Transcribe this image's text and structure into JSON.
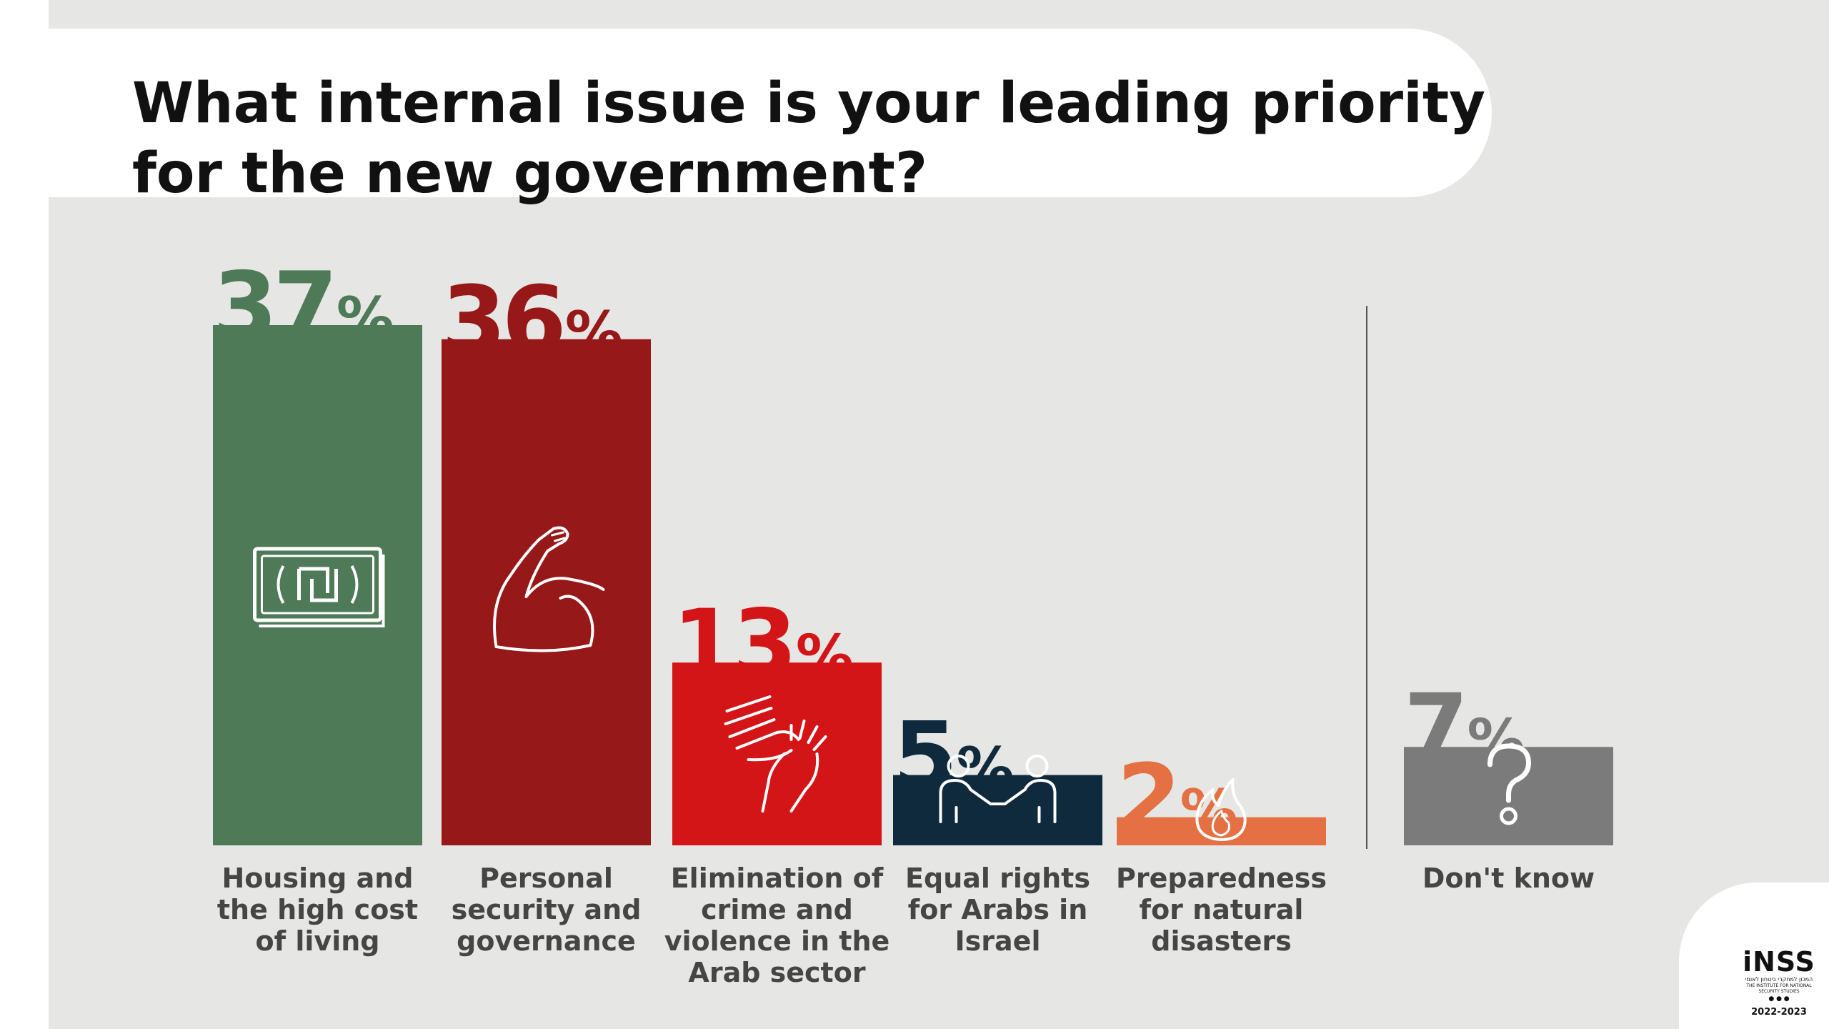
{
  "title": "What internal issue is your leading priority for the new government?",
  "chart_data": {
    "type": "bar",
    "title": "What internal issue is your leading priority for the new government?",
    "categories": [
      "Housing and the high cost of living",
      "Personal security and governance",
      "Elimination of crime and violence in the Arab sector",
      "Equal rights for Arabs in Israel",
      "Preparedness for natural disasters",
      "Don't know"
    ],
    "label_lines": [
      [
        "Housing and",
        "the high cost",
        "of living"
      ],
      [
        "Personal",
        "security and",
        "governance"
      ],
      [
        "Elimination of",
        "crime and",
        "violence in the",
        "Arab sector"
      ],
      [
        "Equal rights",
        "for Arabs in",
        "Israel"
      ],
      [
        "Preparedness",
        "for natural",
        "disasters"
      ],
      [
        "Don't know"
      ]
    ],
    "values": [
      37,
      36,
      13,
      5,
      2,
      7
    ],
    "value_labels": [
      "37",
      "36",
      "13",
      "5",
      "2",
      "7"
    ],
    "unit": "%",
    "colors": [
      "#4f7a57",
      "#971818",
      "#d41518",
      "#0f2a3c",
      "#e47043",
      "#7b7b7b"
    ],
    "icons": [
      "shekel-banknote-icon",
      "flexed-arm-icon",
      "stop-hands-icon",
      "handshake-people-icon",
      "flame-icon",
      "question-mark-icon"
    ],
    "xlabel": "",
    "ylabel": "",
    "ylim": [
      0,
      37
    ],
    "grid": false,
    "legend": "none"
  },
  "logo": {
    "name": "iNSS",
    "hebrew": "המכון למחקרי ביטחון לאומי",
    "english": "THE INSTITUTE FOR NATIONAL SECURITY STUDIES",
    "dots": "● ● ●",
    "years": "2022-2023"
  }
}
